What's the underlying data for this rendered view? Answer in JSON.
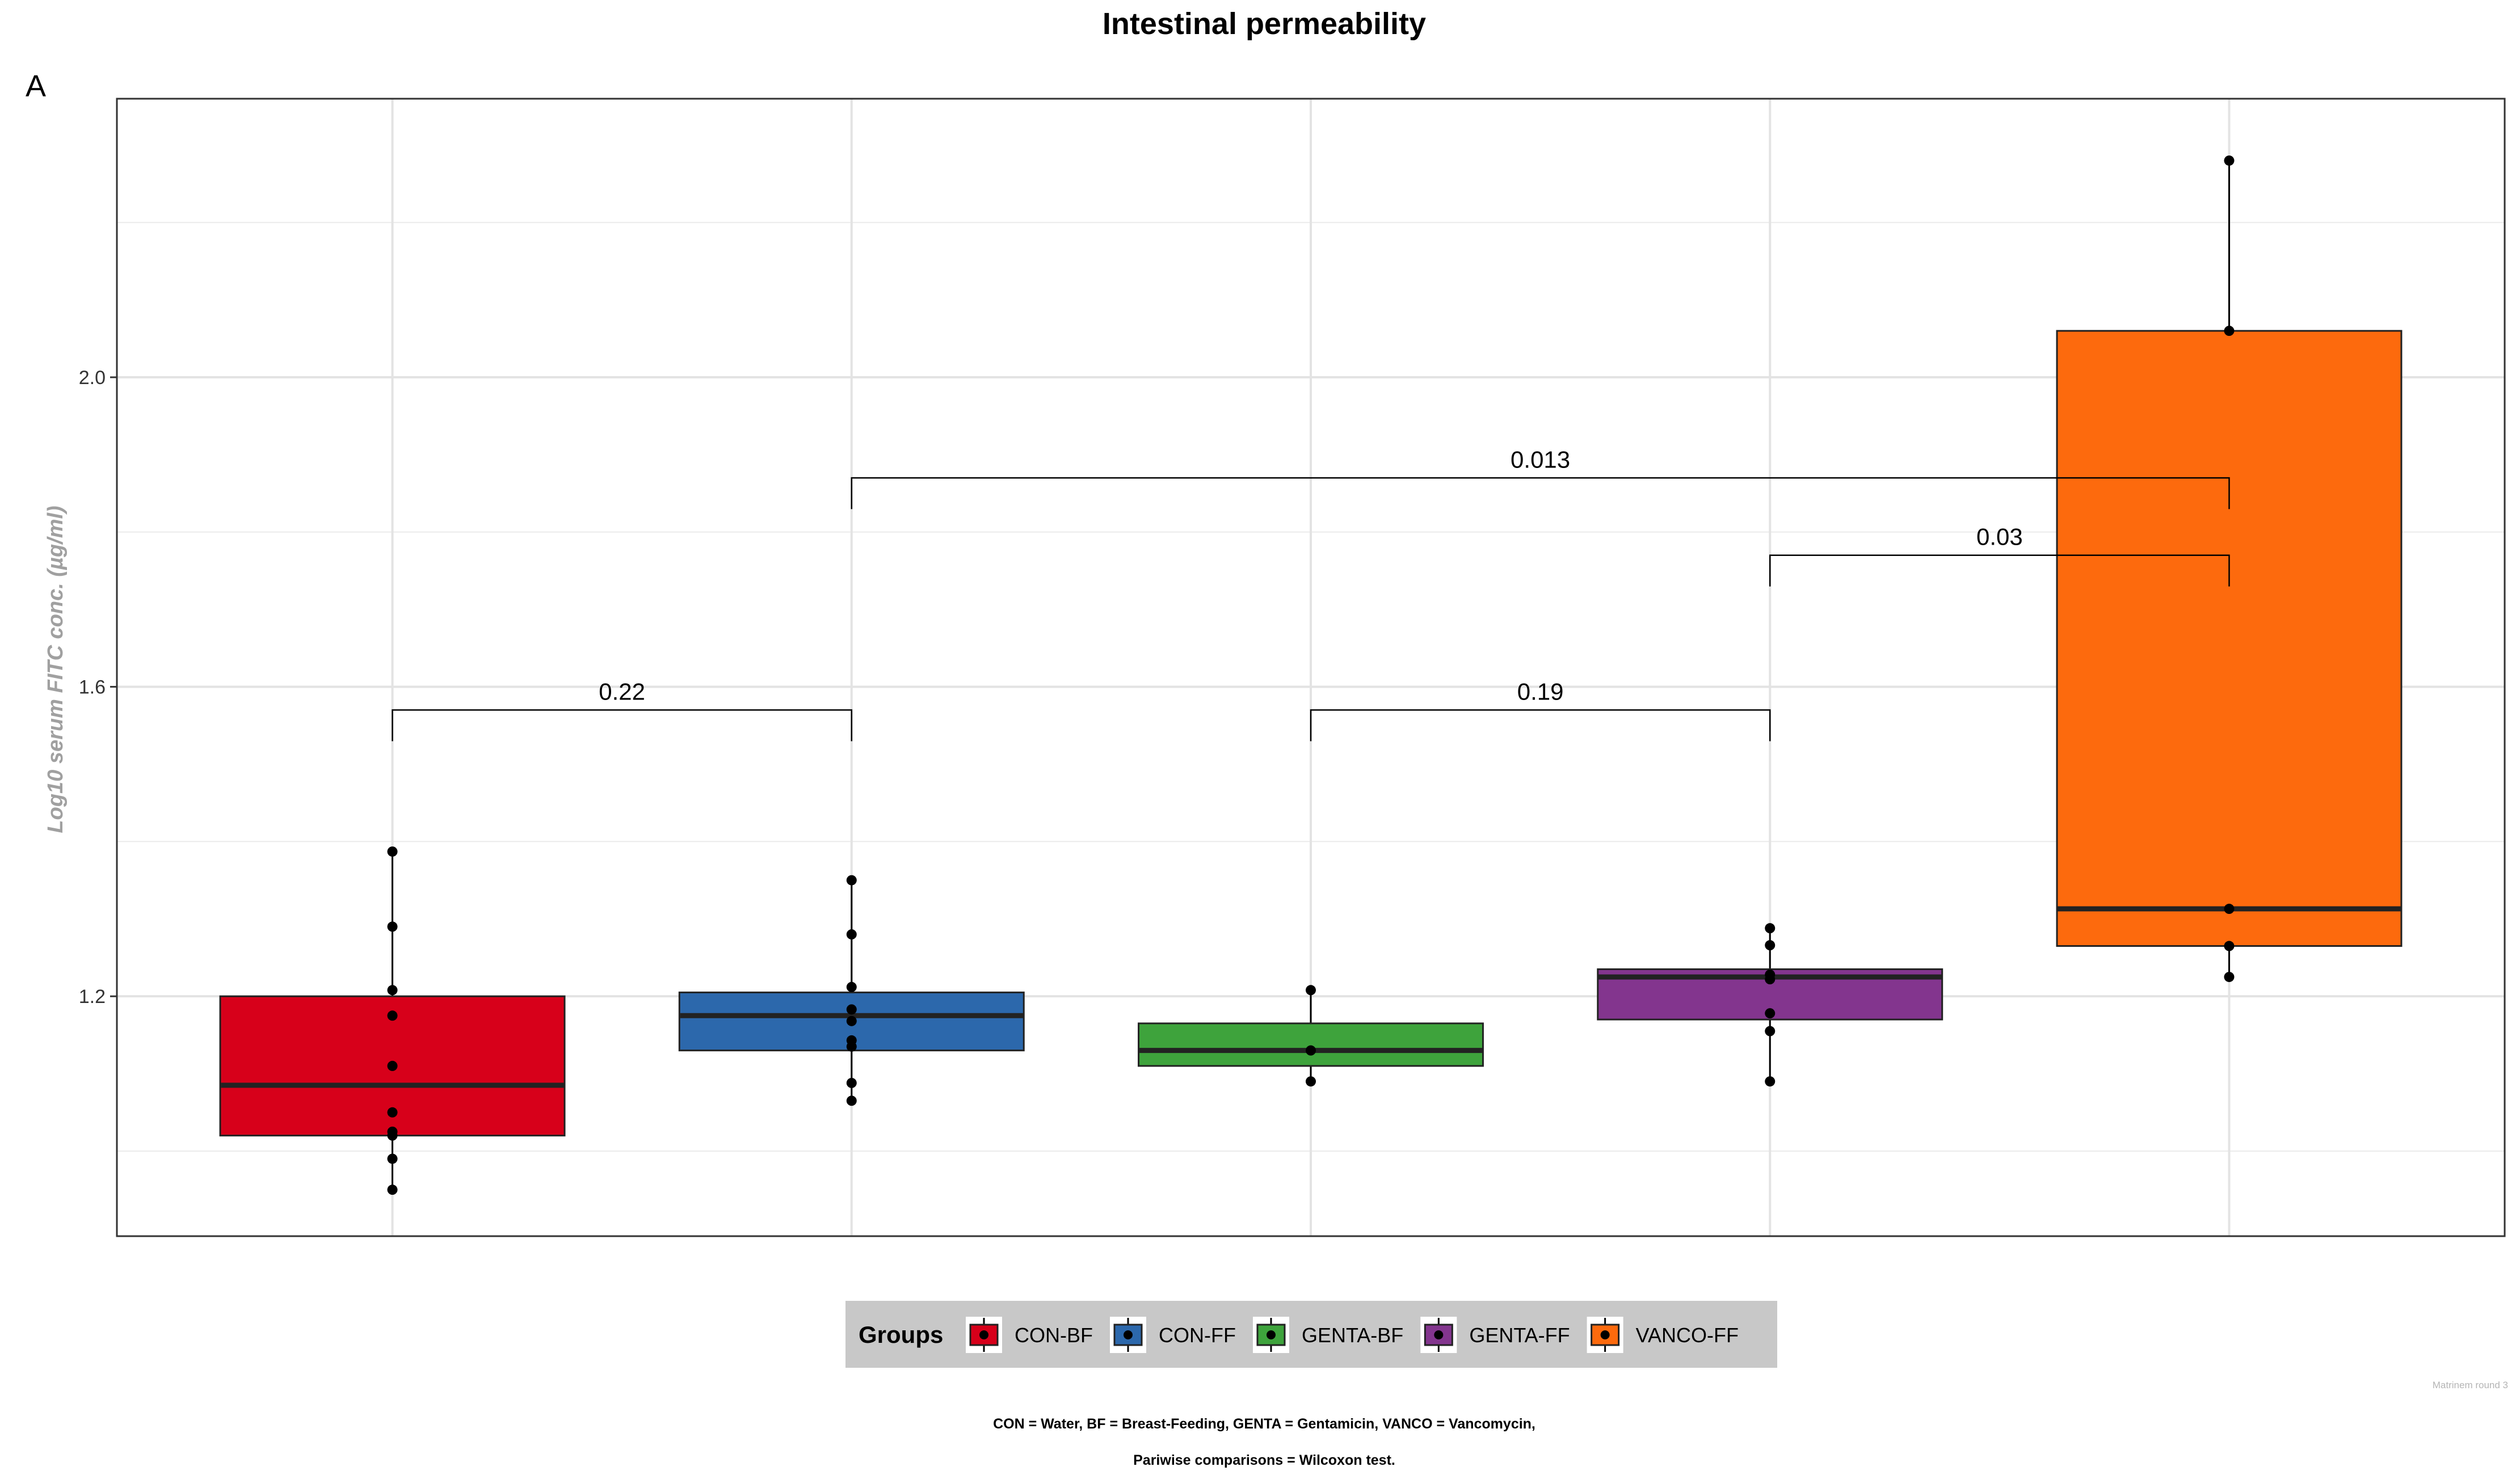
{
  "chart_data": {
    "type": "box",
    "title": "Intestinal permeability",
    "panel_tag": "A",
    "xlabel": "",
    "ylabel": "Log10 serum FITC conc. (µg/ml)",
    "ylim": [
      0.89,
      2.36
    ],
    "yticks": [
      1.2,
      1.6,
      2.0
    ],
    "ytick_labels": [
      "1.2",
      "1.6",
      "2.0"
    ],
    "grid": true,
    "categories": [
      "CON-BF",
      "CON-FF",
      "GENTA-BF",
      "GENTA-FF",
      "VANCO-FF"
    ],
    "series": [
      {
        "name": "CON-BF",
        "color": "#d7001a",
        "min": 0.95,
        "q1": 1.02,
        "median": 1.085,
        "q3": 1.2,
        "max": 1.387,
        "points": [
          1.387,
          1.29,
          1.208,
          1.175,
          1.11,
          1.05,
          1.025,
          1.02,
          0.99,
          0.95
        ]
      },
      {
        "name": "CON-FF",
        "color": "#2c68ac",
        "min": 1.065,
        "q1": 1.13,
        "median": 1.175,
        "q3": 1.205,
        "max": 1.35,
        "points": [
          1.35,
          1.28,
          1.212,
          1.183,
          1.168,
          1.143,
          1.135,
          1.088,
          1.065
        ]
      },
      {
        "name": "GENTA-BF",
        "color": "#3ea33c",
        "min": 1.09,
        "q1": 1.11,
        "median": 1.13,
        "q3": 1.165,
        "max": 1.208,
        "points": [
          1.208,
          1.13,
          1.09
        ]
      },
      {
        "name": "GENTA-FF",
        "color": "#83358e",
        "min": 1.09,
        "q1": 1.17,
        "median": 1.225,
        "q3": 1.235,
        "max": 1.288,
        "points": [
          1.288,
          1.266,
          1.228,
          1.222,
          1.178,
          1.155,
          1.09
        ]
      },
      {
        "name": "VANCO-FF",
        "color": "#fd6a0d",
        "min": 1.225,
        "q1": 1.265,
        "median": 1.313,
        "q3": 2.06,
        "max": 2.28,
        "points": [
          2.28,
          2.06,
          1.313,
          1.265,
          1.225
        ]
      }
    ],
    "comparisons": [
      {
        "groups": [
          "CON-BF",
          "CON-FF"
        ],
        "label": "0.22",
        "y": 1.57
      },
      {
        "groups": [
          "GENTA-BF",
          "GENTA-FF"
        ],
        "label": "0.19",
        "y": 1.57
      },
      {
        "groups": [
          "CON-FF",
          "VANCO-FF"
        ],
        "label": "0.013",
        "y": 1.87
      },
      {
        "groups": [
          "GENTA-FF",
          "VANCO-FF"
        ],
        "label": "0.03",
        "y": 1.77
      }
    ],
    "legend": {
      "title": "Groups",
      "position": "bottom"
    },
    "watermark": "Matrinem round 3",
    "captions": [
      "CON = Water, BF = Breast-Feeding, GENTA = Gentamicin,  VANCO = Vancomycin,",
      "Pariwise comparisons = Wilcoxon test."
    ]
  }
}
